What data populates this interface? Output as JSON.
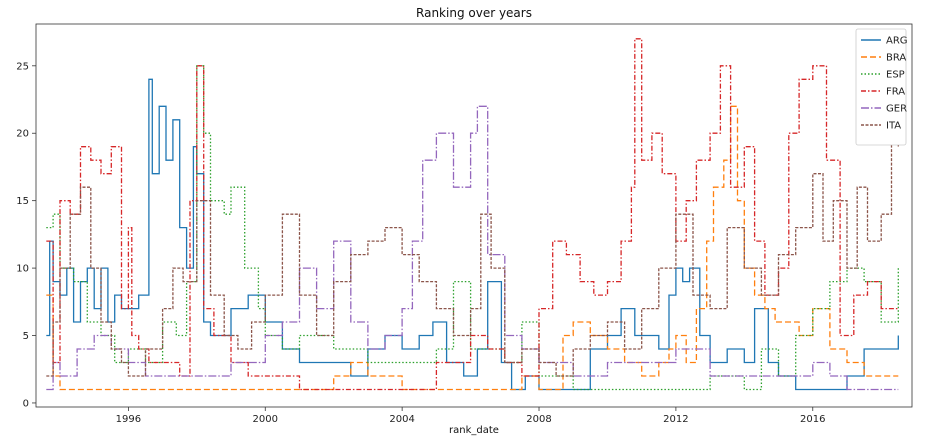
{
  "chart_data": {
    "type": "line",
    "title": "Ranking over years",
    "xlabel": "rank_date",
    "ylabel": "",
    "xlim": [
      1993.3,
      2018.9
    ],
    "ylim": [
      -0.3,
      28.1
    ],
    "xticks": [
      1996,
      2000,
      2004,
      2008,
      2012,
      2016
    ],
    "yticks": [
      0,
      5,
      10,
      15,
      20,
      25
    ],
    "grid": false,
    "legend": "top-right",
    "series": [
      {
        "name": "ARG",
        "color": "#1f77b4",
        "dash": "",
        "x": [
          1993.6,
          1993.7,
          1993.8,
          1994.0,
          1994.2,
          1994.4,
          1994.6,
          1994.8,
          1995.0,
          1995.2,
          1995.4,
          1995.6,
          1995.8,
          1996.0,
          1996.3,
          1996.6,
          1996.7,
          1996.9,
          1997.1,
          1997.3,
          1997.5,
          1997.7,
          1997.9,
          1998.0,
          1998.2,
          1998.4,
          1998.6,
          1999.0,
          1999.5,
          2000.0,
          2000.5,
          2001.0,
          2002.0,
          2002.5,
          2003.0,
          2003.5,
          2004.0,
          2004.5,
          2004.9,
          2005.3,
          2005.8,
          2006.2,
          2006.5,
          2006.9,
          2007.2,
          2007.6,
          2008.0,
          2009.0,
          2009.5,
          2010.0,
          2010.4,
          2010.8,
          2011.2,
          2011.5,
          2011.8,
          2012.0,
          2012.2,
          2012.4,
          2012.7,
          2013.0,
          2013.5,
          2014.0,
          2014.3,
          2014.7,
          2015.0,
          2015.5,
          2016.0,
          2016.5,
          2017.0,
          2017.5,
          2018.0,
          2018.5
        ],
        "values": [
          5,
          12,
          9,
          8,
          10,
          6,
          9,
          10,
          7,
          10,
          6,
          8,
          7,
          7,
          8,
          24,
          17,
          22,
          18,
          21,
          13,
          10,
          19,
          17,
          6,
          5,
          5,
          7,
          8,
          6,
          4,
          3,
          3,
          2,
          4,
          5,
          4,
          5,
          6,
          3,
          2,
          4,
          9,
          3,
          1,
          2,
          1,
          1,
          4,
          5,
          7,
          5,
          5,
          4,
          8,
          10,
          9,
          10,
          5,
          3,
          4,
          3,
          7,
          3,
          2,
          1,
          1,
          1,
          2,
          4,
          4,
          5
        ]
      },
      {
        "name": "BRA",
        "color": "#ff7f0e",
        "dash": "6,3",
        "x": [
          1993.6,
          1993.8,
          1994.0,
          1994.5,
          1995.0,
          1996.0,
          1998.0,
          2000.0,
          2001.0,
          2002.0,
          2002.5,
          2003.0,
          2004.0,
          2005.0,
          2006.0,
          2007.0,
          2007.5,
          2008.0,
          2008.7,
          2009.0,
          2009.5,
          2010.0,
          2010.5,
          2011.0,
          2011.5,
          2011.8,
          2012.0,
          2012.3,
          2012.6,
          2012.9,
          2013.1,
          2013.4,
          2013.6,
          2013.8,
          2014.0,
          2014.3,
          2014.6,
          2014.9,
          2015.2,
          2015.6,
          2016.0,
          2016.5,
          2017.0,
          2017.5,
          2018.0,
          2018.5
        ],
        "values": [
          8,
          2,
          1,
          1,
          1,
          1,
          1,
          1,
          1,
          2,
          3,
          2,
          1,
          1,
          1,
          1,
          2,
          1,
          5,
          6,
          5,
          4,
          3,
          2,
          3,
          4,
          5,
          3,
          7,
          12,
          16,
          18,
          22,
          15,
          10,
          8,
          7,
          6,
          6,
          5,
          7,
          4,
          3,
          2,
          2,
          2
        ]
      },
      {
        "name": "ESP",
        "color": "#2ca02c",
        "dash": "1.5,2",
        "x": [
          1993.6,
          1993.8,
          1994.0,
          1994.4,
          1994.8,
          1995.2,
          1995.6,
          1996.0,
          1996.5,
          1997.0,
          1997.4,
          1997.7,
          1998.0,
          1998.2,
          1998.4,
          1998.8,
          1999.0,
          1999.4,
          1999.8,
          2000.0,
          2000.5,
          2001.0,
          2002.0,
          2003.0,
          2004.0,
          2005.0,
          2005.5,
          2006.0,
          2006.5,
          2007.0,
          2007.5,
          2008.0,
          2009.0,
          2010.0,
          2010.5,
          2011.0,
          2012.0,
          2013.0,
          2014.0,
          2014.5,
          2015.0,
          2015.5,
          2016.0,
          2016.5,
          2017.0,
          2017.5,
          2018.0,
          2018.5
        ],
        "values": [
          13,
          14,
          10,
          9,
          6,
          5,
          3,
          4,
          3,
          6,
          5,
          9,
          25,
          20,
          15,
          14,
          16,
          10,
          7,
          5,
          4,
          5,
          4,
          3,
          3,
          4,
          9,
          4,
          4,
          3,
          6,
          2,
          1,
          1,
          1,
          1,
          1,
          2,
          1,
          4,
          2,
          5,
          7,
          9,
          10,
          9,
          6,
          10
        ]
      },
      {
        "name": "FRA",
        "color": "#d62728",
        "dash": "5,2,1.5,2",
        "x": [
          1993.6,
          1993.8,
          1994.0,
          1994.3,
          1994.6,
          1994.9,
          1995.2,
          1995.5,
          1995.8,
          1996.0,
          1996.1,
          1996.3,
          1996.6,
          1997.0,
          1997.5,
          1997.8,
          1998.0,
          1998.2,
          1998.5,
          1999.0,
          1999.5,
          2000.0,
          2001.0,
          2002.0,
          2003.0,
          2004.0,
          2005.0,
          2006.0,
          2006.5,
          2007.0,
          2007.5,
          2008.0,
          2008.4,
          2008.8,
          2009.2,
          2009.6,
          2010.0,
          2010.4,
          2010.7,
          2010.8,
          2011.0,
          2011.3,
          2011.6,
          2012.0,
          2012.3,
          2012.6,
          2013.0,
          2013.3,
          2013.6,
          2014.0,
          2014.3,
          2014.6,
          2015.0,
          2015.3,
          2015.6,
          2016.0,
          2016.4,
          2016.8,
          2017.2,
          2017.6,
          2018.0,
          2018.5
        ],
        "values": [
          12,
          3,
          15,
          14,
          19,
          18,
          17,
          19,
          7,
          13,
          5,
          4,
          3,
          3,
          2,
          15,
          25,
          7,
          5,
          3,
          2,
          2,
          1,
          1,
          1,
          1,
          3,
          5,
          4,
          3,
          2,
          7,
          12,
          11,
          9,
          8,
          9,
          12,
          16,
          27,
          18,
          20,
          17,
          12,
          15,
          18,
          20,
          25,
          16,
          19,
          12,
          8,
          10,
          20,
          24,
          25,
          18,
          5,
          8,
          9,
          7,
          7
        ]
      },
      {
        "name": "GER",
        "color": "#9467bd",
        "dash": "8,2,1.5,2",
        "x": [
          1993.6,
          1993.8,
          1994.0,
          1994.5,
          1995.0,
          1995.5,
          1996.0,
          1996.5,
          1997.0,
          1997.5,
          1998.0,
          1999.0,
          2000.0,
          2000.5,
          2001.0,
          2001.5,
          2002.0,
          2002.5,
          2003.0,
          2003.5,
          2004.0,
          2004.3,
          2004.6,
          2005.0,
          2005.5,
          2006.0,
          2006.2,
          2006.5,
          2007.0,
          2007.5,
          2008.0,
          2008.5,
          2009.0,
          2010.0,
          2011.0,
          2012.0,
          2013.0,
          2014.0,
          2015.0,
          2015.5,
          2016.0,
          2016.5,
          2017.0,
          2017.5,
          2018.0,
          2018.5
        ],
        "values": [
          1,
          3,
          2,
          4,
          5,
          4,
          3,
          2,
          2,
          2,
          2,
          3,
          5,
          6,
          10,
          7,
          12,
          6,
          4,
          5,
          7,
          12,
          18,
          20,
          16,
          20,
          22,
          11,
          5,
          4,
          3,
          3,
          2,
          3,
          3,
          4,
          2,
          2,
          2,
          2,
          3,
          2,
          1,
          1,
          1,
          1
        ]
      },
      {
        "name": "ITA",
        "color": "#8c564b",
        "dash": "3,1.5",
        "x": [
          1993.6,
          1993.8,
          1994.0,
          1994.3,
          1994.6,
          1994.9,
          1995.2,
          1995.5,
          1995.8,
          1996.0,
          1996.5,
          1997.0,
          1997.3,
          1997.6,
          1998.0,
          1998.4,
          1998.8,
          1999.2,
          1999.6,
          2000.0,
          2000.5,
          2001.0,
          2001.5,
          2002.0,
          2002.5,
          2003.0,
          2003.5,
          2004.0,
          2004.5,
          2005.0,
          2005.5,
          2006.0,
          2006.3,
          2006.6,
          2007.0,
          2007.5,
          2008.0,
          2008.5,
          2009.0,
          2009.5,
          2010.0,
          2010.5,
          2011.0,
          2011.5,
          2012.0,
          2012.5,
          2013.0,
          2013.5,
          2014.0,
          2014.5,
          2015.0,
          2015.5,
          2016.0,
          2016.3,
          2016.6,
          2017.0,
          2017.3,
          2017.6,
          2018.0,
          2018.3,
          2018.5
        ],
        "values": [
          2,
          6,
          10,
          14,
          16,
          10,
          6,
          4,
          3,
          2,
          4,
          7,
          10,
          9,
          15,
          8,
          5,
          4,
          6,
          8,
          14,
          8,
          5,
          9,
          11,
          12,
          13,
          11,
          9,
          7,
          5,
          7,
          14,
          10,
          3,
          4,
          3,
          2,
          4,
          5,
          6,
          4,
          7,
          10,
          14,
          8,
          7,
          13,
          10,
          8,
          11,
          13,
          17,
          12,
          15,
          10,
          16,
          12,
          14,
          20,
          19
        ]
      }
    ]
  }
}
